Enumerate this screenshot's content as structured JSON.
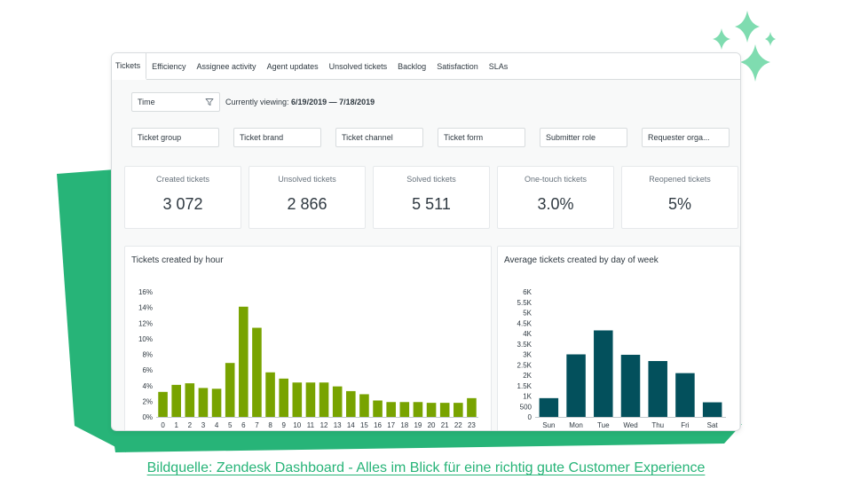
{
  "tabs": [
    {
      "label": "Tickets",
      "active": true
    },
    {
      "label": "Efficiency"
    },
    {
      "label": "Assignee activity"
    },
    {
      "label": "Agent updates"
    },
    {
      "label": "Unsolved tickets"
    },
    {
      "label": "Backlog"
    },
    {
      "label": "Satisfaction"
    },
    {
      "label": "SLAs"
    }
  ],
  "time_filter": {
    "value": "Time",
    "icon": "funnel-icon"
  },
  "viewing": {
    "prefix": "Currently viewing:",
    "range": "6/19/2019 — 7/18/2019"
  },
  "fields": [
    "Ticket group",
    "Ticket brand",
    "Ticket channel",
    "Ticket form",
    "Submitter role",
    "Requester orga..."
  ],
  "kpis": [
    {
      "label": "Created tickets",
      "value": "3 072"
    },
    {
      "label": "Unsolved tickets",
      "value": "2 866"
    },
    {
      "label": "Solved tickets",
      "value": "5 511"
    },
    {
      "label": "One-touch tickets",
      "value": "3.0%"
    },
    {
      "label": "Reopened tickets",
      "value": "5%"
    }
  ],
  "chart_data": [
    {
      "type": "bar",
      "title": "Tickets created by hour",
      "categories": [
        "0",
        "1",
        "2",
        "3",
        "4",
        "5",
        "6",
        "7",
        "8",
        "9",
        "10",
        "11",
        "12",
        "13",
        "14",
        "15",
        "16",
        "17",
        "18",
        "19",
        "20",
        "21",
        "22",
        "23"
      ],
      "values": [
        3.2,
        4.1,
        4.3,
        3.7,
        3.6,
        6.9,
        14.1,
        11.4,
        5.7,
        4.9,
        4.4,
        4.4,
        4.4,
        3.9,
        3.3,
        2.9,
        2.1,
        1.9,
        1.9,
        1.9,
        1.8,
        1.8,
        1.8,
        2.4
      ],
      "yticks": [
        "0%",
        "2%",
        "4%",
        "6%",
        "8%",
        "10%",
        "12%",
        "14%",
        "16%"
      ],
      "ylim": [
        0,
        16
      ],
      "unit": "%",
      "color": "#78a300"
    },
    {
      "type": "bar",
      "title": "Average tickets created by day of week",
      "categories": [
        "Sun",
        "Mon",
        "Tue",
        "Wed",
        "Thu",
        "Fri",
        "Sat"
      ],
      "values": [
        900,
        3000,
        4150,
        2980,
        2680,
        2100,
        700
      ],
      "yticks": [
        "0",
        "500",
        "1K",
        "1.5K",
        "2K",
        "2.5K",
        "3K",
        "3.5K",
        "4K",
        "4.5K",
        "5K",
        "5.5K",
        "6K"
      ],
      "ylim": [
        0,
        6000
      ],
      "color": "#03505c"
    }
  ],
  "caption": "Bildquelle: Zendesk Dashboard - Alles im Blick für eine richtig gute Customer Experience",
  "colors": {
    "brand_green": "#27b478",
    "sparkle_green": "#7fdcb0"
  }
}
